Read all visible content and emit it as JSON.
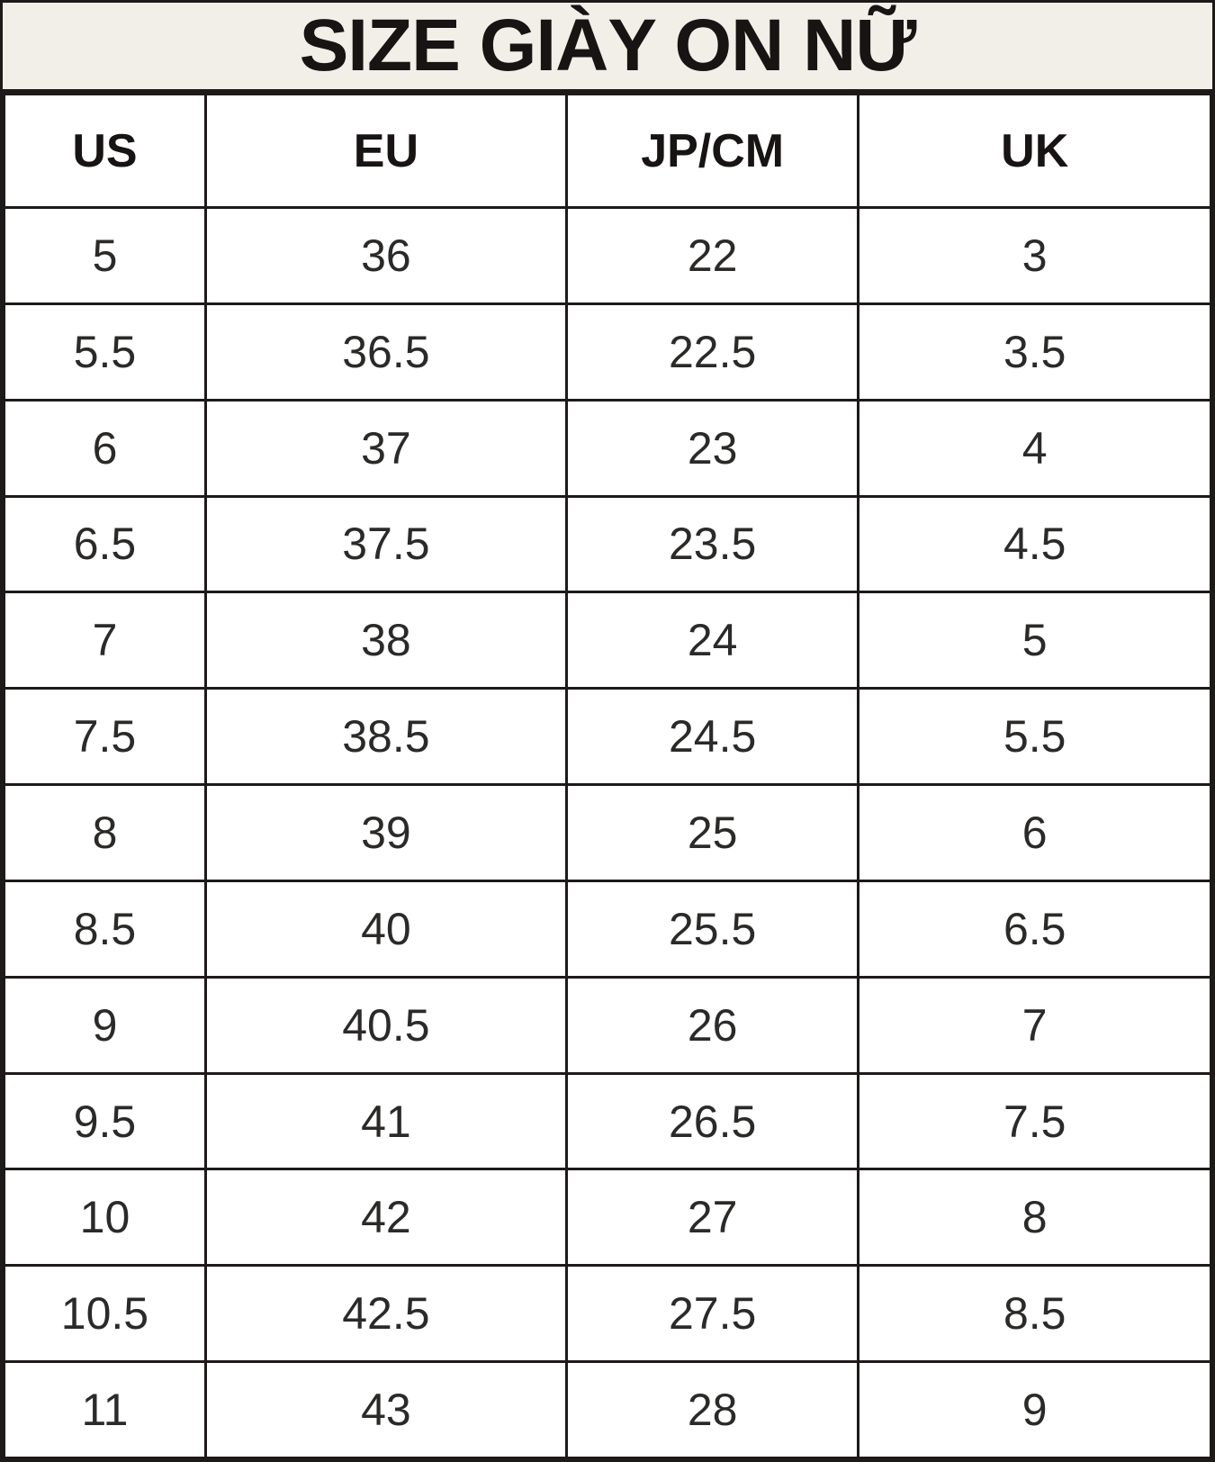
{
  "title": "SIZE GIÀY ON NỮ",
  "colors": {
    "title_background": "#F2EFE8",
    "border": "#1D1A19",
    "cell_background": "#FFFFFF",
    "text": "#171413"
  },
  "chart_data": {
    "type": "table",
    "title": "SIZE GIÀY ON NỮ",
    "columns": [
      "US",
      "EU",
      "JP/CM",
      "UK"
    ],
    "rows": [
      [
        "5",
        "36",
        "22",
        "3"
      ],
      [
        "5.5",
        "36.5",
        "22.5",
        "3.5"
      ],
      [
        "6",
        "37",
        "23",
        "4"
      ],
      [
        "6.5",
        "37.5",
        "23.5",
        "4.5"
      ],
      [
        "7",
        "38",
        "24",
        "5"
      ],
      [
        "7.5",
        "38.5",
        "24.5",
        "5.5"
      ],
      [
        "8",
        "39",
        "25",
        "6"
      ],
      [
        "8.5",
        "40",
        "25.5",
        "6.5"
      ],
      [
        "9",
        "40.5",
        "26",
        "7"
      ],
      [
        "9.5",
        "41",
        "26.5",
        "7.5"
      ],
      [
        "10",
        "42",
        "27",
        "8"
      ],
      [
        "10.5",
        "42.5",
        "27.5",
        "8.5"
      ],
      [
        "11",
        "43",
        "28",
        "9"
      ]
    ],
    "layout": {
      "column_width_percent": [
        16.7,
        29.9,
        24.2,
        29.2
      ],
      "grid": true,
      "header_bold": true
    }
  }
}
